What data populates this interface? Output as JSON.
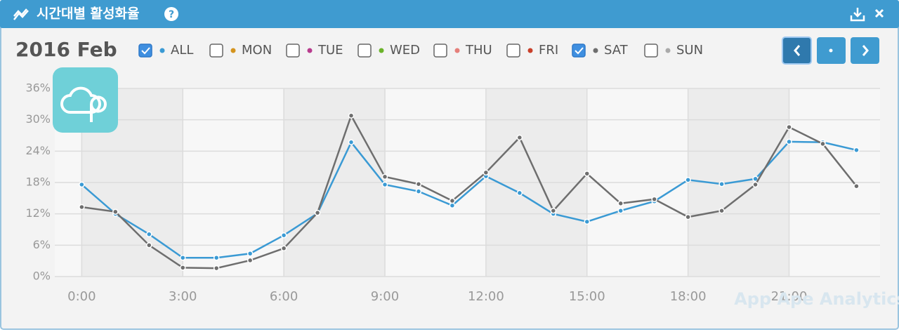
{
  "chart_data": {
    "type": "line",
    "title": "시간대별 활성화율",
    "period": "2016 Feb",
    "watermark": "App Ape Analytics",
    "x": [
      0,
      1,
      2,
      3,
      4,
      5,
      6,
      7,
      8,
      9,
      10,
      11,
      12,
      13,
      14,
      15,
      16,
      17,
      18,
      19,
      20,
      21,
      22,
      23
    ],
    "xlim": [
      -0.8,
      23.7
    ],
    "xticks": [
      {
        "value": 0,
        "label": "0:00"
      },
      {
        "value": 3,
        "label": "3:00"
      },
      {
        "value": 6,
        "label": "6:00"
      },
      {
        "value": 9,
        "label": "9:00"
      },
      {
        "value": 12,
        "label": "12:00"
      },
      {
        "value": 15,
        "label": "15:00"
      },
      {
        "value": 18,
        "label": "18:00"
      },
      {
        "value": 21,
        "label": "21:00"
      }
    ],
    "ylim": [
      0,
      36
    ],
    "yticks": [
      {
        "value": 0,
        "label": "0%"
      },
      {
        "value": 6,
        "label": "6%"
      },
      {
        "value": 12,
        "label": "12%"
      },
      {
        "value": 18,
        "label": "18%"
      },
      {
        "value": 24,
        "label": "24%"
      },
      {
        "value": 30,
        "label": "30%"
      },
      {
        "value": 36,
        "label": "36%"
      }
    ],
    "grid": true,
    "series": [
      {
        "name": "ALL",
        "color": "#3a9ad4",
        "checked": true,
        "values": [
          17.6,
          12,
          8.1,
          3.6,
          3.6,
          4.4,
          7.9,
          12.1,
          25.7,
          17.6,
          16.3,
          13.6,
          19.2,
          16,
          12,
          10.5,
          12.6,
          14.4,
          18.5,
          17.7,
          18.7,
          25.8,
          25.7,
          24.2
        ]
      },
      {
        "name": "MON",
        "color": "#d4941e",
        "checked": false
      },
      {
        "name": "TUE",
        "color": "#b83c8e",
        "checked": false
      },
      {
        "name": "WED",
        "color": "#6bb32a",
        "checked": false
      },
      {
        "name": "THU",
        "color": "#e57f7a",
        "checked": false
      },
      {
        "name": "FRI",
        "color": "#c9402a",
        "checked": false
      },
      {
        "name": "SAT",
        "color": "#6e6e6e",
        "checked": true,
        "values": [
          13.3,
          12.4,
          6,
          1.7,
          1.6,
          3.1,
          5.4,
          12.2,
          30.8,
          19.1,
          17.7,
          14.5,
          19.9,
          26.6,
          12.6,
          19.7,
          14,
          14.8,
          11.4,
          12.6,
          17.6,
          28.6,
          25.4,
          17.3
        ]
      },
      {
        "name": "SUN",
        "color": "#aaaaaa",
        "checked": false
      }
    ]
  }
}
